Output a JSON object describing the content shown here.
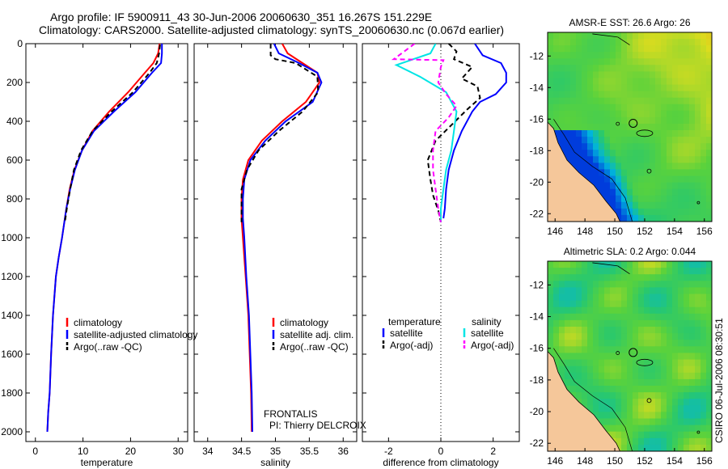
{
  "header": {
    "line1": "Argo profile: IF 5900911_43 30-Jun-2006 20060630_351 16.267S 151.229E",
    "line2": "Climatology: CARS2000. Satellite-adjusted climatology: synTS_20060630.nc (0.067d earlier)"
  },
  "stamp": "CSIRO 06-Jul-2006 08:30:51",
  "colors": {
    "red": "#ff0000",
    "blue": "#0000ff",
    "black": "#000000",
    "cyan": "#00e5e5",
    "magenta": "#ff00ff",
    "land": "#f5c79a"
  },
  "chart_data": [
    {
      "id": "temperature",
      "type": "line",
      "xlabel": "temperature",
      "ylabel": "",
      "xlim": [
        -2,
        32
      ],
      "ylim": [
        0,
        2050
      ],
      "y_inverted": true,
      "xticks": [
        0,
        10,
        20,
        30
      ],
      "yticks": [
        0,
        200,
        400,
        600,
        800,
        1000,
        1200,
        1400,
        1600,
        1800,
        2000
      ],
      "legend": {
        "position": "lower-left",
        "entries": [
          "climatology",
          "satellite-adjusted climatology",
          "Argo(..raw -QC)"
        ]
      },
      "series": [
        {
          "name": "climatology",
          "color": "#ff0000",
          "dash": "",
          "x": [
            26.1,
            25.8,
            24.8,
            23.0,
            19.5,
            15.5,
            12.0,
            9.8,
            8.2,
            7.2,
            6.5,
            5.6,
            4.9,
            4.3,
            3.7,
            3.3,
            3.0,
            2.7,
            2.5
          ],
          "y": [
            0,
            50,
            100,
            150,
            250,
            350,
            450,
            550,
            650,
            750,
            850,
            1000,
            1100,
            1200,
            1400,
            1600,
            1800,
            1900,
            2000
          ]
        },
        {
          "name": "satellite-adjusted climatology",
          "color": "#0000ff",
          "dash": "",
          "x": [
            26.6,
            26.6,
            26.4,
            24.5,
            21.0,
            16.5,
            12.3,
            9.8,
            8.3,
            7.3,
            6.5,
            5.6,
            4.9,
            4.3,
            3.7,
            3.3,
            3.0,
            2.7,
            2.5
          ],
          "y": [
            0,
            50,
            100,
            150,
            250,
            350,
            450,
            550,
            650,
            750,
            850,
            1000,
            1100,
            1200,
            1400,
            1600,
            1800,
            1900,
            2000
          ]
        },
        {
          "name": "Argo(..raw -QC)",
          "color": "#000000",
          "dash": "6,4",
          "x": [
            26.2,
            26.0,
            25.5,
            24.0,
            20.5,
            16.0,
            12.0,
            9.6,
            8.1,
            7.3,
            6.6,
            6.2
          ],
          "y": [
            5,
            50,
            100,
            150,
            250,
            350,
            450,
            550,
            650,
            750,
            850,
            920
          ]
        }
      ]
    },
    {
      "id": "salinity",
      "type": "line",
      "xlabel": "salinity",
      "ylabel": "",
      "xlim": [
        33.8,
        36.2
      ],
      "ylim": [
        0,
        2050
      ],
      "y_inverted": true,
      "xticks": [
        34,
        34.5,
        35,
        35.5,
        36
      ],
      "yticks": [],
      "legend": {
        "position": "lower-right",
        "entries": [
          "climatology",
          "satellite adj. clim.",
          "Argo(..raw -QC)"
        ]
      },
      "annotation": {
        "line1": "FRONTALIS",
        "line2": "PI: Thierry DELCROIX"
      },
      "series": [
        {
          "name": "climatology",
          "color": "#ff0000",
          "dash": "",
          "x": [
            35.1,
            35.18,
            35.4,
            35.62,
            35.65,
            35.45,
            35.1,
            34.8,
            34.6,
            34.52,
            34.5,
            34.5,
            34.52,
            34.56,
            34.6,
            34.62,
            34.64,
            34.65
          ],
          "y": [
            0,
            50,
            100,
            150,
            200,
            300,
            400,
            500,
            600,
            700,
            800,
            900,
            1000,
            1200,
            1400,
            1600,
            1800,
            2000
          ]
        },
        {
          "name": "satellite adj. clim.",
          "color": "#0000ff",
          "dash": "",
          "x": [
            34.98,
            35.05,
            35.35,
            35.62,
            35.68,
            35.55,
            35.15,
            34.85,
            34.63,
            34.54,
            34.52,
            34.52,
            34.54,
            34.57,
            34.61,
            34.63,
            34.65,
            34.66
          ],
          "y": [
            0,
            50,
            100,
            150,
            200,
            300,
            400,
            500,
            600,
            700,
            800,
            900,
            1000,
            1200,
            1400,
            1600,
            1800,
            2000
          ]
        },
        {
          "name": "Argo(..raw -QC)",
          "color": "#000000",
          "dash": "6,4",
          "x": [
            34.93,
            34.93,
            35.0,
            35.3,
            35.62,
            35.63,
            35.4,
            35.05,
            34.75,
            34.58,
            34.5,
            34.5,
            34.5
          ],
          "y": [
            0,
            60,
            80,
            100,
            170,
            250,
            350,
            450,
            550,
            650,
            750,
            850,
            920
          ]
        }
      ]
    },
    {
      "id": "difference",
      "type": "line",
      "xlabel": "difference from climatology",
      "ylabel": "",
      "xlim": [
        -3,
        3
      ],
      "ylim": [
        0,
        2050
      ],
      "y_inverted": true,
      "xticks": [
        -2,
        0,
        2
      ],
      "yticks": [],
      "legend": {
        "position": "lower-center",
        "temperature": {
          "title": "temperature",
          "entries": [
            "satellite",
            "Argo(-adj)"
          ]
        },
        "salinity": {
          "title": "salinity",
          "entries": [
            "satellite",
            "Argo(-adj)"
          ]
        }
      },
      "series": [
        {
          "name": "temperature satellite",
          "color": "#0000ff",
          "dash": "",
          "x": [
            1.3,
            1.6,
            2.3,
            2.5,
            2.5,
            2.1,
            1.5,
            1.2,
            0.8,
            0.5,
            0.3,
            0.2,
            0.15,
            0.1
          ],
          "y": [
            0,
            60,
            100,
            150,
            200,
            260,
            300,
            350,
            450,
            550,
            650,
            750,
            850,
            900
          ]
        },
        {
          "name": "temperature Argo(-adj)",
          "color": "#000000",
          "dash": "6,4",
          "x": [
            0.3,
            0.6,
            0.5,
            1.2,
            0.8,
            1.4,
            1.5,
            1.0,
            0.4,
            -0.2,
            -0.5,
            -0.4,
            -0.3,
            -0.1,
            0.0
          ],
          "y": [
            0,
            40,
            80,
            120,
            180,
            220,
            280,
            340,
            420,
            500,
            600,
            700,
            780,
            860,
            920
          ]
        },
        {
          "name": "salinity satellite",
          "color": "#00e5e5",
          "dash": "",
          "x": [
            -0.2,
            -0.4,
            -1.7,
            -0.8,
            0.2,
            0.6,
            0.5,
            0.4,
            0.2,
            0.1,
            0.0,
            0.0
          ],
          "y": [
            0,
            50,
            110,
            170,
            250,
            350,
            450,
            550,
            650,
            750,
            850,
            920
          ]
        },
        {
          "name": "salinity Argo(-adj)",
          "color": "#ff00ff",
          "dash": "6,4",
          "x": [
            -1.0,
            -1.8,
            0.1,
            0.0,
            -0.1,
            0.2,
            0.6,
            0.3,
            -0.2,
            -0.3,
            -0.3,
            -0.2,
            -0.1,
            0.0
          ],
          "y": [
            0,
            80,
            85,
            120,
            200,
            260,
            320,
            380,
            450,
            550,
            650,
            750,
            850,
            920
          ]
        }
      ]
    },
    {
      "id": "sst_map",
      "type": "heatmap",
      "title": "AMSR-E SST: 26.6 Argo: 26",
      "xticks": [
        146,
        148,
        150,
        152,
        154,
        156
      ],
      "yticks": [
        -12,
        -14,
        -16,
        -18,
        -20,
        -22
      ],
      "xlim": [
        145.5,
        156.5
      ],
      "ylim": [
        -22.5,
        -10.5
      ],
      "float_position": {
        "lon": 151.229,
        "lat": -16.267
      }
    },
    {
      "id": "sla_map",
      "type": "heatmap",
      "title": "Altimetric SLA: 0.2 Argo: 0.044",
      "xticks": [
        146,
        148,
        150,
        152,
        154,
        156
      ],
      "yticks": [
        -12,
        -14,
        -16,
        -18,
        -20,
        -22
      ],
      "xlim": [
        145.5,
        156.5
      ],
      "ylim": [
        -22.5,
        -10.5
      ],
      "float_position": {
        "lon": 151.229,
        "lat": -16.267
      }
    }
  ]
}
